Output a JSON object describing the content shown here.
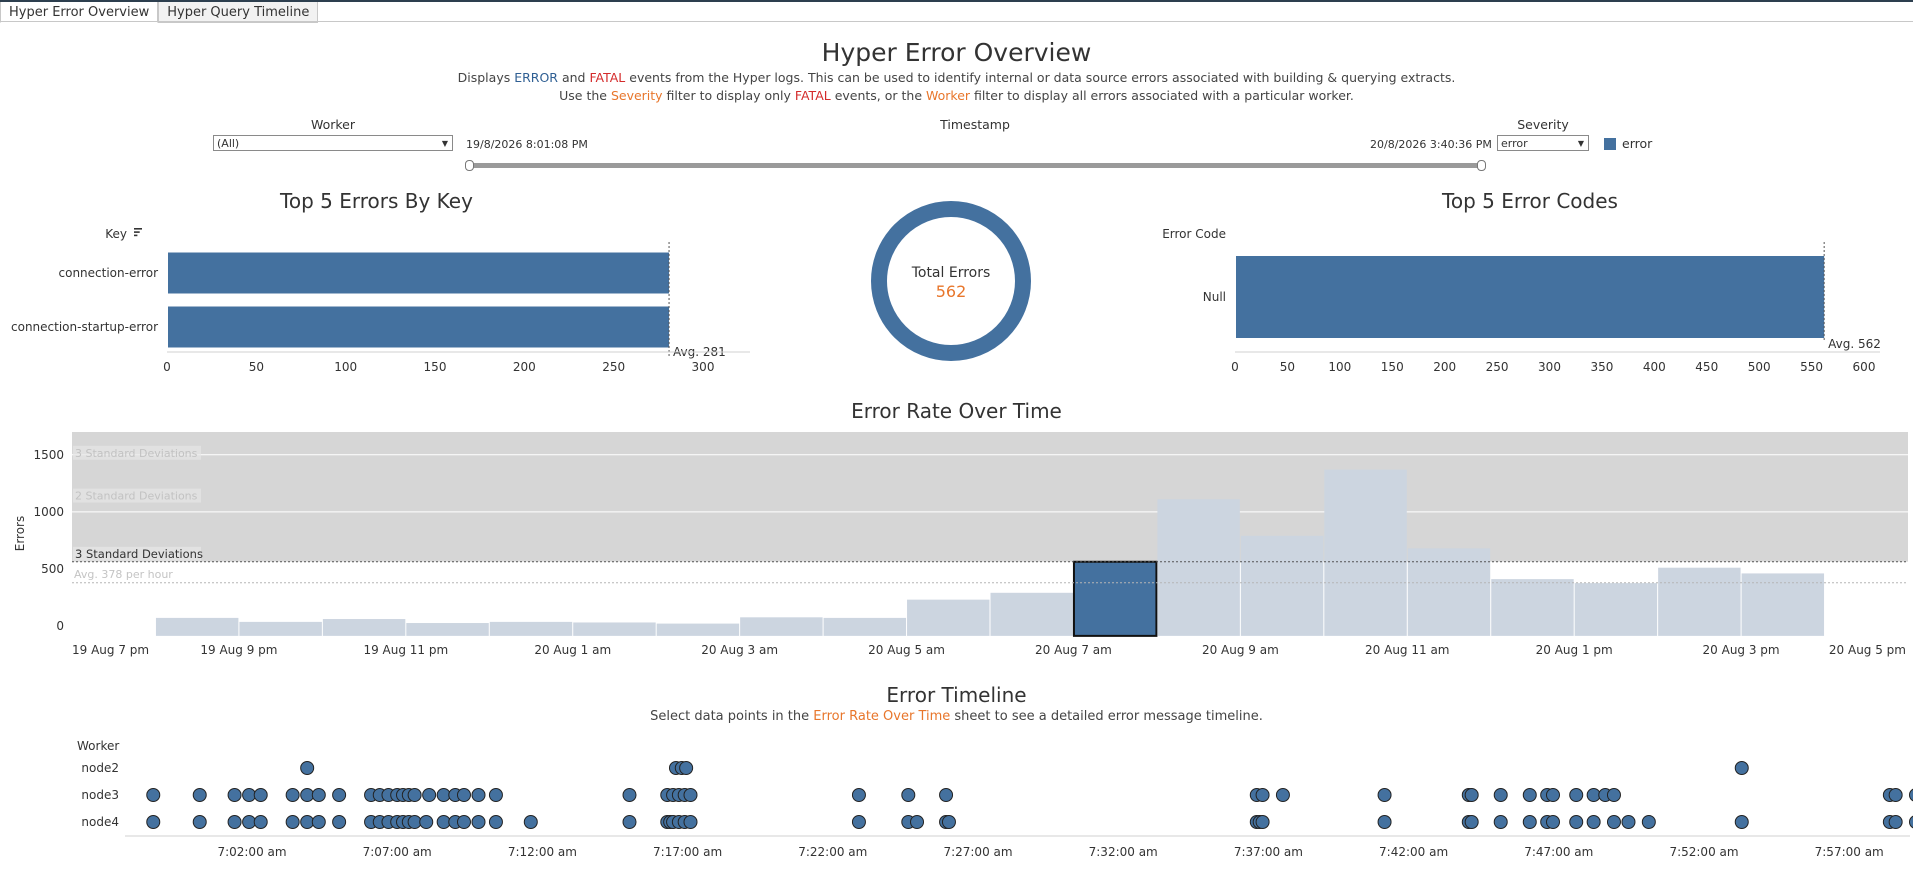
{
  "tabs": [
    {
      "label": "Hyper Error Overview",
      "active": true
    },
    {
      "label": "Hyper Query Timeline",
      "active": false
    }
  ],
  "header": {
    "title": "Hyper Error Overview",
    "desc1": {
      "a": "Displays ",
      "error": "ERROR",
      "b": " and ",
      "fatal": "FATAL",
      "c": " events from the Hyper logs.  This can be used to identify internal or data source errors associated with building & querying extracts."
    },
    "desc2": {
      "a": "Use the ",
      "severity": "Severity",
      "b": " filter to display only ",
      "fatal": "FATAL",
      "c": " events, or the ",
      "worker": "Worker",
      "d": " filter to display all errors associated with a particular worker."
    }
  },
  "filters": {
    "worker": {
      "label": "Worker",
      "value": "(All)"
    },
    "timestamp": {
      "label": "Timestamp",
      "start": "19/8/2026 8:01:08 PM",
      "end": "20/8/2026 3:40:36 PM"
    },
    "severity": {
      "label": "Severity",
      "value": "error"
    },
    "legend": {
      "label": "error",
      "color": "#44719f"
    }
  },
  "colors": {
    "bar": "#44719f",
    "bar_light": "#ccd5e0",
    "band": "#d6d6d6",
    "orange": "#e8762b"
  },
  "chart_data": [
    {
      "id": "top_keys",
      "type": "bar",
      "orientation": "horizontal",
      "title": "Top 5 Errors By Key",
      "ylabel": "Key",
      "sort_icon": "sort-icon",
      "categories": [
        "connection-error",
        "connection-startup-error"
      ],
      "values": [
        281,
        281
      ],
      "xlim": [
        0,
        300
      ],
      "xticks": [
        0,
        50,
        100,
        150,
        200,
        250,
        300
      ],
      "reference_line": {
        "value": 281,
        "label": "Avg. 281"
      }
    },
    {
      "id": "total_errors",
      "type": "pie",
      "style": "donut",
      "label": "Total Errors",
      "value": 562
    },
    {
      "id": "top_codes",
      "type": "bar",
      "orientation": "horizontal",
      "title": "Top 5 Error Codes",
      "ylabel": "Error Code",
      "categories": [
        "Null"
      ],
      "values": [
        562
      ],
      "xlim": [
        0,
        600
      ],
      "xticks": [
        0,
        50,
        100,
        150,
        200,
        250,
        300,
        350,
        400,
        450,
        500,
        550,
        600
      ],
      "reference_line": {
        "value": 562,
        "label": "Avg. 562"
      }
    },
    {
      "id": "error_rate",
      "type": "bar",
      "title": "Error Rate Over Time",
      "ylabel": "Errors",
      "ylim": [
        -80,
        1700
      ],
      "yticks": [
        0,
        500,
        1000,
        1500
      ],
      "x_tick_labels": [
        "19 Aug 7 pm",
        "19 Aug 9 pm",
        "19 Aug 11 pm",
        "20 Aug 1 am",
        "20 Aug 3 am",
        "20 Aug 5 am",
        "20 Aug 7 am",
        "20 Aug 9 am",
        "20 Aug 11 am",
        "20 Aug 1 pm",
        "20 Aug 3 pm",
        "20 Aug 5 pm"
      ],
      "x_start": "19 Aug 7 pm",
      "x_end": "20 Aug 5 pm",
      "bars": [
        {
          "start": "19 Aug 8 pm",
          "value": 70
        },
        {
          "start": "19 Aug 9 pm",
          "value": 35
        },
        {
          "start": "19 Aug 10 pm",
          "value": 60
        },
        {
          "start": "19 Aug 11 pm",
          "value": 25
        },
        {
          "start": "20 Aug 12 am",
          "value": 35
        },
        {
          "start": "20 Aug 1 am",
          "value": 30
        },
        {
          "start": "20 Aug 2 am",
          "value": 20
        },
        {
          "start": "20 Aug 3 am",
          "value": 75
        },
        {
          "start": "20 Aug 4 am",
          "value": 70
        },
        {
          "start": "20 Aug 5 am",
          "value": 230
        },
        {
          "start": "20 Aug 6 am",
          "value": 290
        },
        {
          "start": "20 Aug 7 am",
          "value": 562,
          "selected": true
        },
        {
          "start": "20 Aug 8 am",
          "value": 1110
        },
        {
          "start": "20 Aug 9 am",
          "value": 790
        },
        {
          "start": "20 Aug 10 am",
          "value": 1370
        },
        {
          "start": "20 Aug 11 am",
          "value": 680
        },
        {
          "start": "20 Aug 12 pm",
          "value": 410
        },
        {
          "start": "20 Aug 1 pm",
          "value": 375
        },
        {
          "start": "20 Aug 2 pm",
          "value": 510
        },
        {
          "start": "20 Aug 3 pm",
          "value": 460
        }
      ],
      "average": {
        "value": 378,
        "label": "Avg. 378 per hour"
      },
      "bands": [
        {
          "label": "3 Standard Deviations",
          "value": 1500,
          "faded": true
        },
        {
          "label": "2 Standard Deviations",
          "value": 1125,
          "faded": true
        },
        {
          "label": "3 Standard Deviations",
          "value": 562,
          "faded": false
        }
      ]
    },
    {
      "id": "timeline",
      "type": "scatter",
      "title": "Error Timeline",
      "subtitle": {
        "a": "Select data points in the ",
        "link": "Error Rate Over Time",
        "b": " sheet to see a detailed error message timeline."
      },
      "ylabel": "Worker",
      "categories": [
        "node2",
        "node3",
        "node4"
      ],
      "x_tick_labels": [
        "7:02:00 am",
        "7:07:00 am",
        "7:12:00 am",
        "7:17:00 am",
        "7:22:00 am",
        "7:27:00 am",
        "7:32:00 am",
        "7:37:00 am",
        "7:42:00 am",
        "7:47:00 am",
        "7:52:00 am",
        "7:57:00 am"
      ],
      "x_unit": "minutes past 7:00 am",
      "series": [
        {
          "category": "node2",
          "x": [
            3.9,
            16.6,
            16.8,
            16.95,
            53.3
          ]
        },
        {
          "category": "node3",
          "x": [
            -1.4,
            0.2,
            1.4,
            1.9,
            2.3,
            3.4,
            3.9,
            4.3,
            5.0,
            6.1,
            6.4,
            6.7,
            7.0,
            7.2,
            7.4,
            7.6,
            8.1,
            8.6,
            9.0,
            9.3,
            9.8,
            10.4,
            15.0,
            16.3,
            16.5,
            16.7,
            16.9,
            17.1,
            22.9,
            24.6,
            25.9,
            36.6,
            36.8,
            37.5,
            41.0,
            43.9,
            44.0,
            45.0,
            46.0,
            46.6,
            46.8,
            47.6,
            48.2,
            48.6,
            48.9,
            58.4,
            58.6,
            59.3
          ]
        },
        {
          "category": "node4",
          "x": [
            -1.4,
            0.2,
            1.4,
            1.9,
            2.3,
            3.4,
            3.9,
            4.3,
            5.0,
            6.1,
            6.4,
            6.7,
            7.0,
            7.2,
            7.4,
            7.6,
            8.0,
            8.6,
            9.0,
            9.3,
            9.8,
            10.4,
            11.6,
            15.0,
            16.3,
            16.4,
            16.5,
            16.7,
            16.9,
            17.1,
            22.9,
            24.6,
            24.9,
            25.9,
            26.0,
            36.6,
            36.7,
            36.8,
            41.0,
            43.9,
            44.0,
            45.0,
            46.0,
            46.6,
            46.8,
            47.6,
            48.2,
            48.9,
            49.4,
            50.1,
            53.3,
            58.4,
            58.6,
            59.3
          ]
        }
      ]
    }
  ]
}
